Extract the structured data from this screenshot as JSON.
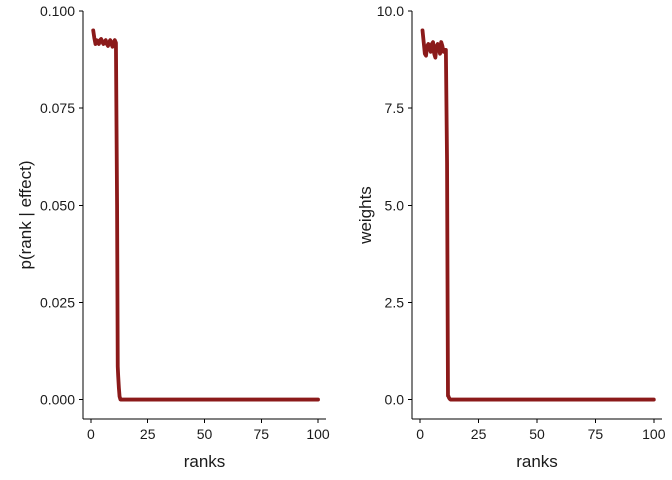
{
  "colors": {
    "line": "#8b1a1a",
    "axis": "#000000"
  },
  "chart_data": [
    {
      "type": "line",
      "title": "",
      "xlabel": "ranks",
      "ylabel": "p(rank | effect)",
      "xlim": [
        -3.5,
        103.5
      ],
      "ylim": [
        -0.005,
        0.1
      ],
      "grid": false,
      "x_ticks": [
        0,
        25,
        50,
        75,
        100
      ],
      "x_tick_labels": [
        "0",
        "25",
        "50",
        "75",
        "100"
      ],
      "y_ticks": [
        0,
        0.025,
        0.05,
        0.075,
        0.1
      ],
      "y_tick_labels": [
        "0.000",
        "0.025",
        "0.050",
        "0.075",
        "0.100"
      ],
      "series": [
        {
          "values": {
            "x": [
              1,
              1.5,
              2,
              2.5,
              3,
              3.5,
              4,
              4.5,
              5,
              5.5,
              6,
              6.5,
              7,
              7.5,
              8,
              8.5,
              9,
              9.5,
              10,
              10.5,
              11,
              11.5,
              11.8,
              12,
              12.3,
              12.6,
              13,
              100
            ],
            "y": [
              0.095,
              0.093,
              0.0915,
              0.0925,
              0.092,
              0.0915,
              0.0925,
              0.0928,
              0.092,
              0.0915,
              0.0922,
              0.0925,
              0.0915,
              0.091,
              0.092,
              0.0925,
              0.0915,
              0.0908,
              0.092,
              0.0925,
              0.0918,
              0.05,
              0.0085,
              0.006,
              0.003,
              0.0008,
              0.0,
              0.0
            ]
          }
        }
      ]
    },
    {
      "type": "line",
      "title": "",
      "xlabel": "ranks",
      "ylabel": "weights",
      "xlim": [
        -3.5,
        103.5
      ],
      "ylim": [
        -0.5,
        10.0
      ],
      "grid": false,
      "x_ticks": [
        0,
        25,
        50,
        75,
        100
      ],
      "x_tick_labels": [
        "0",
        "25",
        "50",
        "75",
        "100"
      ],
      "y_ticks": [
        0,
        2.5,
        5,
        7.5,
        10
      ],
      "y_tick_labels": [
        "0.0",
        "2.5",
        "5.0",
        "7.5",
        "10.0"
      ],
      "series": [
        {
          "values": {
            "x": [
              1,
              1.5,
              2,
              2.5,
              3,
              3.5,
              4,
              4.5,
              5,
              5.5,
              6,
              6.5,
              7,
              7.5,
              8,
              8.5,
              9,
              9.5,
              10,
              10.5,
              11,
              11.5,
              11.7,
              11.9,
              12,
              12.3,
              12.6,
              13,
              100
            ],
            "y": [
              9.5,
              9.2,
              8.9,
              8.85,
              9.1,
              9.15,
              9.05,
              8.95,
              9.15,
              9.2,
              8.9,
              8.8,
              9.1,
              9.15,
              9.05,
              8.9,
              9.2,
              9.1,
              8.95,
              9.0,
              9.0,
              6.1,
              3.1,
              0.1,
              0.1,
              0.05,
              0.02,
              0.0,
              0.0
            ]
          }
        }
      ]
    }
  ]
}
